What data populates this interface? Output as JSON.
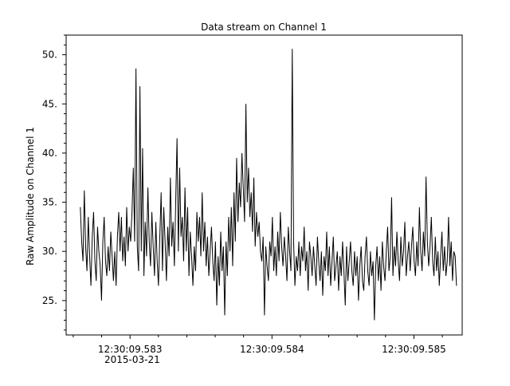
{
  "chart_data": {
    "type": "line",
    "title": "Data stream on Channel 1",
    "xlabel": "",
    "ylabel": "Raw Amplitude on Channel 1",
    "x_date": "2015-03-21",
    "x_tick_labels": [
      "12:30:09.583",
      "12:30:09.584",
      "12:30:09.585"
    ],
    "xlim": [
      "12:30:09.58255",
      "12:30:09.58534"
    ],
    "ylim": [
      21.5,
      52.0
    ],
    "y_ticks": [
      25.0,
      30.0,
      35.0,
      40.0,
      45.0,
      50.0
    ],
    "y_tick_labels": [
      "25.",
      "30.",
      "35.",
      "40.",
      "45.",
      "50."
    ],
    "grid": false,
    "legend": "none",
    "line_color": "#000000",
    "series": [
      {
        "x_start": "12:30:09.58265",
        "x_end": "12:30:09.58530",
        "values": [
          34.5,
          31.0,
          29.0,
          36.2,
          30.5,
          28.0,
          33.5,
          29.5,
          26.5,
          31.5,
          34.0,
          29.0,
          27.0,
          32.5,
          30.0,
          28.5,
          25.0,
          31.0,
          33.5,
          29.0,
          27.5,
          30.5,
          28.0,
          32.0,
          29.5,
          27.0,
          30.0,
          26.5,
          31.5,
          34.0,
          30.0,
          33.5,
          29.0,
          31.5,
          28.5,
          34.5,
          30.0,
          32.5,
          31.0,
          34.0,
          38.5,
          31.0,
          48.6,
          30.5,
          28.0,
          46.8,
          30.0,
          40.5,
          27.5,
          33.0,
          29.5,
          36.5,
          31.0,
          28.5,
          34.0,
          30.5,
          27.5,
          33.0,
          29.0,
          26.5,
          31.5,
          36.0,
          28.0,
          34.5,
          31.0,
          27.0,
          32.5,
          29.5,
          37.5,
          30.5,
          33.0,
          28.5,
          35.0,
          41.5,
          30.0,
          38.5,
          31.5,
          33.5,
          29.0,
          36.5,
          30.0,
          34.5,
          27.5,
          32.0,
          29.5,
          26.5,
          30.5,
          28.0,
          34.0,
          31.0,
          33.5,
          29.5,
          36.0,
          30.0,
          33.0,
          28.5,
          31.5,
          27.5,
          30.0,
          32.5,
          29.0,
          27.0,
          31.0,
          24.5,
          29.5,
          26.5,
          32.0,
          28.0,
          30.5,
          23.5,
          31.0,
          27.5,
          33.5,
          30.0,
          34.5,
          28.5,
          36.0,
          31.0,
          39.5,
          33.0,
          37.0,
          34.5,
          40.0,
          36.5,
          33.0,
          45.0,
          35.0,
          38.5,
          33.5,
          36.0,
          32.0,
          37.5,
          30.5,
          34.0,
          31.5,
          33.0,
          30.0,
          29.0,
          31.5,
          23.5,
          30.5,
          28.5,
          27.0,
          31.0,
          29.5,
          33.5,
          28.0,
          30.5,
          27.5,
          32.0,
          29.0,
          34.0,
          30.5,
          28.5,
          31.5,
          29.5,
          27.0,
          32.5,
          30.0,
          28.0,
          50.6,
          31.0,
          26.5,
          29.5,
          28.0,
          31.0,
          27.5,
          30.5,
          29.0,
          32.5,
          28.0,
          30.0,
          26.0,
          31.0,
          29.5,
          27.5,
          30.5,
          28.5,
          26.5,
          31.5,
          29.0,
          27.0,
          30.0,
          25.5,
          29.5,
          28.0,
          32.0,
          27.5,
          30.5,
          26.5,
          29.0,
          31.5,
          27.0,
          28.5,
          30.0,
          26.0,
          29.5,
          27.5,
          31.0,
          28.0,
          24.5,
          30.5,
          27.0,
          29.0,
          31.0,
          28.0,
          26.5,
          30.0,
          27.5,
          29.5,
          25.0,
          28.5,
          30.5,
          27.0,
          26.0,
          29.5,
          31.5,
          28.0,
          26.5,
          30.0,
          27.5,
          29.0,
          23.0,
          28.5,
          30.5,
          27.0,
          29.5,
          26.0,
          31.0,
          28.5,
          27.0,
          30.0,
          32.5,
          28.0,
          29.5,
          35.5,
          27.5,
          30.5,
          28.5,
          32.0,
          29.0,
          27.0,
          31.5,
          28.5,
          30.0,
          33.0,
          27.5,
          29.5,
          31.0,
          28.0,
          30.5,
          32.5,
          29.0,
          27.5,
          31.0,
          28.5,
          34.5,
          30.0,
          28.0,
          32.0,
          29.5,
          37.6,
          31.0,
          28.5,
          30.5,
          33.5,
          29.0,
          27.5,
          31.5,
          28.0,
          30.0,
          26.5,
          29.5,
          32.0,
          28.0,
          30.5,
          27.5,
          29.0,
          33.5,
          28.5,
          31.0,
          27.0,
          30.0,
          29.5,
          26.5
        ]
      }
    ]
  }
}
